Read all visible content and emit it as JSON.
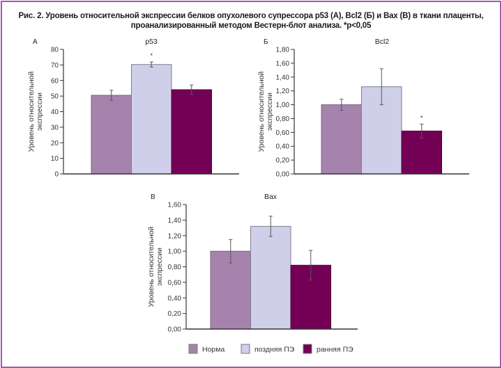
{
  "figure": {
    "title_line1": "Рис. 2. Уровень относительной экспрессии белков опухолевого супрессора p53 (А), Bcl2 (Б) и Bax (В) в ткани плаценты,",
    "title_line2": "проанализированный методом Вестерн-блот анализа. *p<0,05",
    "border_color": "#a05aa8"
  },
  "legend": {
    "placement": "bottom-center",
    "items": [
      {
        "label": "Норма",
        "color": "#a683ad"
      },
      {
        "label": "поздняя ПЭ",
        "color": "#d0cfea"
      },
      {
        "label": "ранняя ПЭ",
        "color": "#740056"
      }
    ]
  },
  "chart_data": [
    {
      "type": "bar",
      "panel": "А",
      "title": "p53",
      "ylabel": "Уровень относительной экспрессии",
      "xlabel": "",
      "ylim": [
        0,
        80
      ],
      "yticks": [
        "0",
        "10",
        "20",
        "30",
        "40",
        "50",
        "60",
        "70",
        "80"
      ],
      "categories": [
        "Норма",
        "поздняя ПЭ",
        "ранняя ПЭ"
      ],
      "values": [
        50.5,
        70.3,
        54.1
      ],
      "errors": [
        3.2,
        1.6,
        3.0
      ],
      "significance": [
        "",
        "*",
        ""
      ]
    },
    {
      "type": "bar",
      "panel": "Б",
      "title": "Bcl2",
      "ylabel": "Уровень относительной экспрессии",
      "xlabel": "",
      "ylim": [
        0,
        1.8
      ],
      "yticks": [
        "0,00",
        "0,20",
        "0,40",
        "0,60",
        "0,80",
        "1,00",
        "1,20",
        "1,40",
        "1,60",
        "1,80"
      ],
      "categories": [
        "Норма",
        "поздняя ПЭ",
        "ранняя ПЭ"
      ],
      "values": [
        1.0,
        1.26,
        0.62
      ],
      "errors": [
        0.08,
        0.26,
        0.1
      ],
      "significance": [
        "",
        "",
        "*"
      ]
    },
    {
      "type": "bar",
      "panel": "В",
      "title": "Bax",
      "ylabel": "Уровень относительной экспрессии",
      "xlabel": "",
      "ylim": [
        0,
        1.6
      ],
      "yticks": [
        "0,00",
        "0,20",
        "0,40",
        "0,60",
        "0,80",
        "1,00",
        "1,20",
        "1,40",
        "1,60"
      ],
      "categories": [
        "Норма",
        "поздняя ПЭ",
        "ранняя ПЭ"
      ],
      "values": [
        1.0,
        1.32,
        0.82
      ],
      "errors": [
        0.15,
        0.13,
        0.19
      ],
      "significance": [
        "",
        "",
        ""
      ]
    }
  ]
}
